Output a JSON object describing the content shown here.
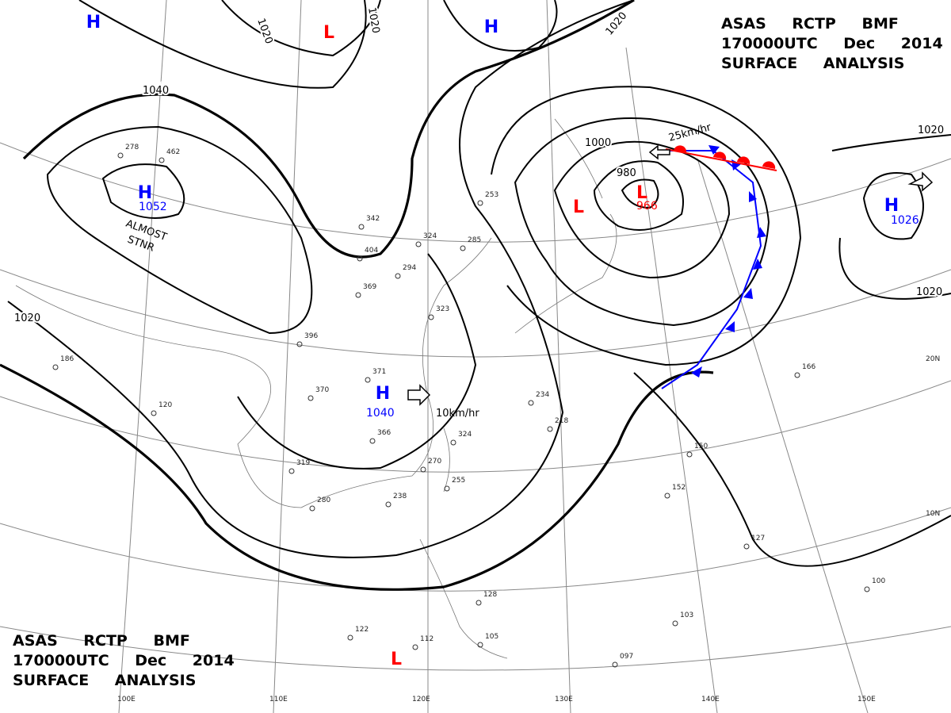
{
  "header_top": {
    "lines": [
      "ASAS RCTP BMF",
      "170000UTC Dec 2014",
      "SURFACE ANALYSIS"
    ]
  },
  "header_bottom": {
    "lines": [
      "ASAS RCTP BMF",
      "170000UTC Dec 2014",
      "SURFACE ANALYSIS"
    ]
  },
  "pressure_centers": [
    {
      "symbol": "H",
      "pressure": 1052
    },
    {
      "symbol": "H",
      "pressure": 1040
    },
    {
      "symbol": "L",
      "pressure": 966
    },
    {
      "symbol": "H",
      "pressure": 1026
    },
    {
      "symbol": "H"
    },
    {
      "symbol": "H"
    },
    {
      "symbol": "L"
    },
    {
      "symbol": "L"
    },
    {
      "symbol": "L"
    }
  ],
  "isobar_labels": [
    1020,
    1020,
    1020,
    1040,
    1000,
    980,
    1020,
    1020,
    1020
  ],
  "motion_labels": [
    "25km/hr",
    "10km/hr"
  ],
  "stationary_label": [
    "ALMOST",
    "STNR"
  ],
  "longitude_labels": [
    "100E",
    "110E",
    "120E",
    "130E",
    "140E",
    "150E"
  ],
  "latitude_labels": [
    "20N",
    "10N"
  ],
  "station_pressures": [
    "278",
    "462",
    "342",
    "324",
    "294",
    "323",
    "369",
    "396",
    "370",
    "366",
    "319",
    "280",
    "238",
    "270",
    "255",
    "234",
    "218",
    "324",
    "150",
    "152",
    "166",
    "127",
    "100",
    "103",
    "097",
    "105",
    "128",
    "112",
    "122",
    "186",
    "120",
    "371",
    "285",
    "253",
    "404"
  ]
}
